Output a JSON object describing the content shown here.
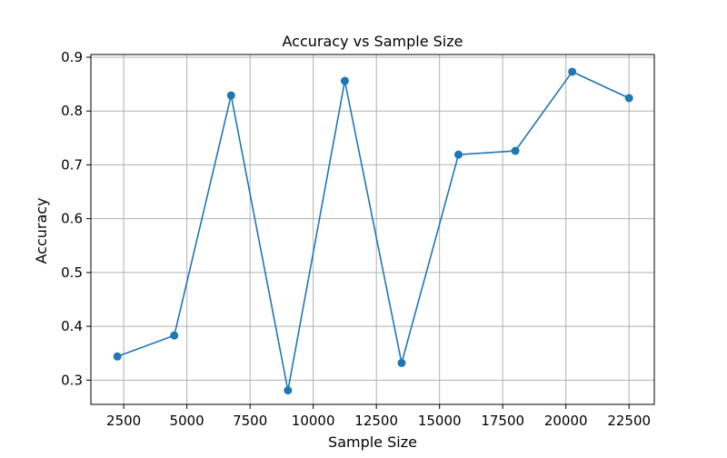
{
  "chart_data": {
    "type": "line",
    "title": "Accuracy vs Sample Size",
    "xlabel": "Sample Size",
    "ylabel": "Accuracy",
    "xlim": [
      1200,
      23500
    ],
    "ylim": [
      0.255,
      0.905
    ],
    "xticks": [
      2500,
      5000,
      7500,
      10000,
      12500,
      15000,
      17500,
      20000,
      22500
    ],
    "yticks": [
      0.3,
      0.4,
      0.5,
      0.6,
      0.7,
      0.8,
      0.9
    ],
    "grid": true,
    "series": [
      {
        "color": "#1f77b4",
        "marker": "circle",
        "x": [
          2250,
          4500,
          6750,
          9000,
          11250,
          13500,
          15750,
          18000,
          20250,
          22500
        ],
        "y": [
          0.344,
          0.383,
          0.829,
          0.281,
          0.856,
          0.332,
          0.719,
          0.726,
          0.873,
          0.824
        ]
      }
    ]
  }
}
